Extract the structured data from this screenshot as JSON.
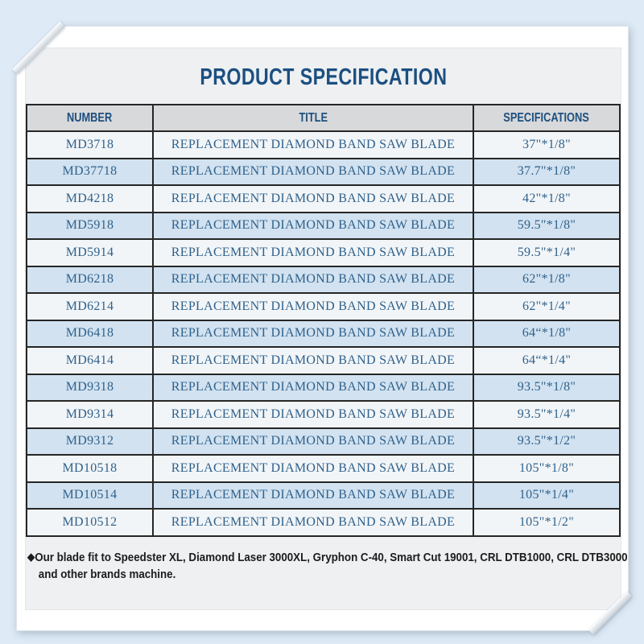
{
  "page": {
    "title": "PRODUCT SPECIFICATION",
    "table": {
      "columns": [
        "NUMBER",
        "TITLE",
        "SPECIFICATIONS"
      ],
      "rows": [
        {
          "number": "MD3718",
          "title": "REPLACEMENT DIAMOND BAND SAW BLADE",
          "spec": "37\"*1/8\""
        },
        {
          "number": "MD37718",
          "title": "REPLACEMENT DIAMOND BAND SAW BLADE",
          "spec": "37.7\"*1/8\""
        },
        {
          "number": "MD4218",
          "title": "REPLACEMENT DIAMOND BAND SAW BLADE",
          "spec": "42\"*1/8\""
        },
        {
          "number": "MD5918",
          "title": "REPLACEMENT DIAMOND BAND SAW BLADE",
          "spec": "59.5\"*1/8\""
        },
        {
          "number": "MD5914",
          "title": "REPLACEMENT DIAMOND BAND SAW BLADE",
          "spec": "59.5\"*1/4\""
        },
        {
          "number": "MD6218",
          "title": "REPLACEMENT DIAMOND BAND SAW BLADE",
          "spec": "62\"*1/8\""
        },
        {
          "number": "MD6214",
          "title": "REPLACEMENT DIAMOND BAND SAW BLADE",
          "spec": "62\"*1/4\""
        },
        {
          "number": "MD6418",
          "title": "REPLACEMENT DIAMOND BAND SAW BLADE",
          "spec": "64“*1/8\""
        },
        {
          "number": "MD6414",
          "title": "REPLACEMENT DIAMOND BAND SAW BLADE",
          "spec": "64“*1/4\""
        },
        {
          "number": "MD9318",
          "title": "REPLACEMENT DIAMOND BAND SAW BLADE",
          "spec": "93.5\"*1/8\""
        },
        {
          "number": "MD9314",
          "title": "REPLACEMENT DIAMOND BAND SAW BLADE",
          "spec": "93.5\"*1/4\""
        },
        {
          "number": "MD9312",
          "title": "REPLACEMENT DIAMOND BAND SAW BLADE",
          "spec": "93.5\"*1/2\""
        },
        {
          "number": "MD10518",
          "title": "REPLACEMENT DIAMOND BAND SAW BLADE",
          "spec": "105\"*1/8\""
        },
        {
          "number": "MD10514",
          "title": "REPLACEMENT DIAMOND BAND SAW BLADE",
          "spec": "105\"*1/4\""
        },
        {
          "number": "MD10512",
          "title": "REPLACEMENT DIAMOND BAND SAW BLADE",
          "spec": "105\"*1/2\""
        }
      ]
    },
    "note": {
      "bullet": "◆",
      "line1": "Our blade fit to Speedster XL, Diamond Laser 3000XL, Gryphon C-40, Smart Cut 19001, CRL DTB1000, CRL DTB3000",
      "line2": "and other brands machine."
    },
    "colors": {
      "background": "#deeaf6",
      "page": "#ffffff",
      "panel": "#eef0f2",
      "header_bg": "#d8d9da",
      "header_text": "#1c4f80",
      "row_base": "#f2f5f7",
      "row_alt": "#d2e2f0",
      "cell_text": "#2f618c",
      "border": "#262626",
      "note_text": "#1c1c1c"
    }
  }
}
